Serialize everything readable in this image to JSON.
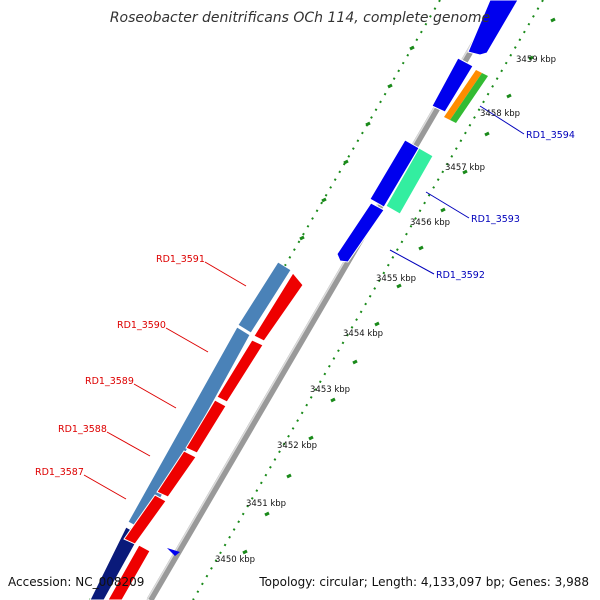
{
  "title": "Roseobacter denitrificans OCh 114, complete genome",
  "footer": {
    "accession": "Accession: NC_008209",
    "summary": "Topology: circular; Length: 4,133,097 bp; Genes: 3,988"
  },
  "colors": {
    "backbone": "#888888",
    "ticks": "#1a8a1a",
    "forward_gene_label": "#0000bb",
    "reverse_gene_label": "#dd0000"
  },
  "scale": {
    "unit": "kbp",
    "labels": [
      "3450 kbp",
      "3451 kbp",
      "3452 kbp",
      "3453 kbp",
      "3454 kbp",
      "3455 kbp",
      "3456 kbp",
      "3457 kbp",
      "3458 kbp",
      "3459 kbp"
    ]
  },
  "gene_labels": {
    "forward": [
      "RD1_3594",
      "RD1_3593",
      "RD1_3592"
    ],
    "reverse": [
      "RD1_3591",
      "RD1_3590",
      "RD1_3589",
      "RD1_3588",
      "RD1_3587"
    ]
  }
}
